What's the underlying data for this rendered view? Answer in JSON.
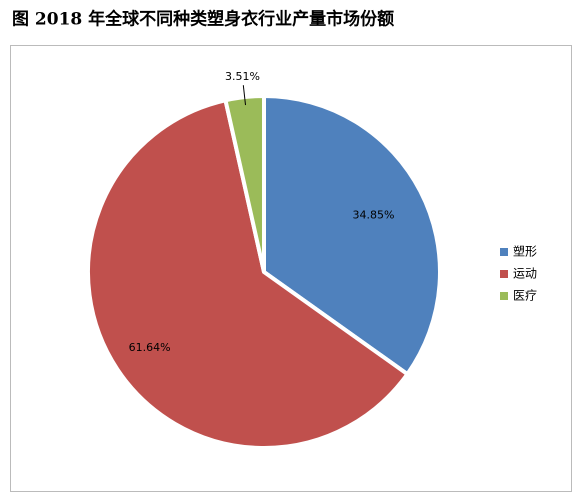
{
  "chart_data": {
    "type": "pie",
    "title": "图 2018 年全球不同种类塑身衣行业产量市场份额",
    "categories": [
      "塑形",
      "运动",
      "医疗"
    ],
    "values": [
      34.85,
      61.64,
      3.51
    ],
    "value_labels": [
      "34.85%",
      "61.64%",
      "3.51%"
    ],
    "colors": [
      "#4f81bd",
      "#c0504d",
      "#9bbb59"
    ],
    "legend": "right"
  }
}
